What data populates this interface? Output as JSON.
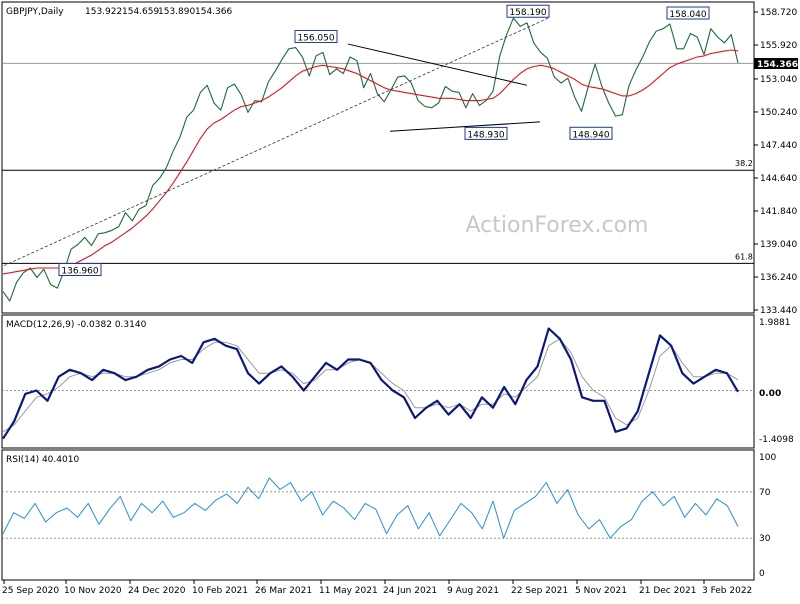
{
  "chart_data": [
    {
      "type": "line",
      "panel": "price",
      "title": "GBPJPY,Daily",
      "ohlc": [
        "153.922",
        "154.659",
        "153.890",
        "154.366"
      ],
      "current_price": "154.366",
      "watermark": "ActionForex.com",
      "ylim": [
        133.44,
        158.72
      ],
      "y_ticks": [
        "158.720",
        "155.920",
        "153.040",
        "150.240",
        "147.440",
        "144.640",
        "141.840",
        "139.040",
        "136.240",
        "133.440"
      ],
      "x_ticks": [
        "25 Sep 2020",
        "10 Nov 2020",
        "24 Dec 2020",
        "10 Feb 2021",
        "26 Mar 2021",
        "11 May 2021",
        "24 Jun 2021",
        "9 Aug 2021",
        "22 Sep 2021",
        "5 Nov 2021",
        "21 Dec 2021",
        "3 Feb 2022"
      ],
      "fib_levels": [
        {
          "label": "38.2",
          "value": 145.3
        },
        {
          "label": "61.8",
          "value": 137.4
        }
      ],
      "annotations": [
        {
          "label": "158.190",
          "value": 158.19
        },
        {
          "label": "158.040",
          "value": 158.04
        },
        {
          "label": "156.050",
          "value": 156.05
        },
        {
          "label": "148.930",
          "value": 148.93
        },
        {
          "label": "148.940",
          "value": 148.94
        },
        {
          "label": "136.960",
          "value": 136.96
        }
      ],
      "series": [
        {
          "name": "price",
          "values": [
            135.0,
            134.2,
            135.8,
            136.6,
            137.0,
            136.2,
            136.9,
            135.6,
            135.3,
            136.8,
            138.6,
            139.0,
            139.6,
            138.9,
            139.9,
            140.0,
            140.2,
            140.5,
            141.7,
            141.0,
            142.0,
            142.3,
            144.0,
            144.6,
            145.5,
            146.9,
            148.1,
            149.8,
            150.4,
            151.9,
            152.5,
            151.0,
            150.4,
            152.3,
            152.6,
            151.7,
            150.2,
            151.2,
            151.1,
            152.8,
            153.7,
            154.7,
            155.6,
            155.7,
            154.9,
            153.3,
            155.0,
            155.3,
            153.4,
            153.9,
            153.5,
            154.9,
            154.6,
            152.3,
            153.5,
            151.8,
            151.1,
            152.1,
            153.2,
            153.3,
            152.7,
            151.2,
            150.7,
            150.6,
            151.0,
            152.4,
            152.0,
            151.9,
            150.6,
            151.8,
            150.8,
            151.2,
            152.0,
            155.0,
            156.8,
            158.2,
            157.5,
            157.8,
            156.1,
            155.3,
            154.8,
            153.2,
            152.7,
            153.1,
            151.5,
            150.3,
            152.4,
            154.3,
            152.4,
            151.0,
            149.9,
            150.0,
            152.5,
            153.8,
            154.9,
            156.2,
            157.1,
            157.3,
            157.7,
            155.6,
            155.6,
            156.9,
            156.6,
            155.1,
            157.3,
            156.6,
            156.1,
            156.8,
            154.4
          ]
        },
        {
          "name": "moving average",
          "values": [
            136.5,
            136.6,
            136.7,
            136.8,
            136.9,
            137.0,
            137.0,
            137.0,
            137.0,
            137.0,
            137.2,
            137.5,
            137.8,
            138.1,
            138.5,
            138.9,
            139.2,
            139.6,
            140.0,
            140.4,
            140.9,
            141.4,
            142.0,
            142.7,
            143.4,
            144.2,
            145.1,
            146.0,
            147.0,
            148.0,
            148.8,
            149.3,
            149.6,
            150.0,
            150.4,
            150.7,
            150.8,
            151.0,
            151.2,
            151.5,
            151.9,
            152.3,
            152.8,
            153.3,
            153.7,
            153.9,
            154.1,
            154.2,
            154.1,
            154.0,
            153.9,
            153.7,
            153.5,
            153.2,
            152.9,
            152.6,
            152.3,
            152.1,
            152.0,
            151.9,
            151.8,
            151.7,
            151.6,
            151.5,
            151.4,
            151.4,
            151.4,
            151.3,
            151.2,
            151.2,
            151.2,
            151.3,
            151.4,
            151.8,
            152.4,
            153.0,
            153.5,
            153.9,
            154.1,
            154.2,
            154.1,
            153.9,
            153.6,
            153.3,
            153.0,
            152.6,
            152.4,
            152.3,
            152.2,
            152.0,
            151.8,
            151.6,
            151.6,
            151.8,
            152.1,
            152.5,
            153.0,
            153.5,
            154.0,
            154.3,
            154.5,
            154.7,
            154.9,
            155.0,
            155.2,
            155.3,
            155.4,
            155.5,
            155.4
          ]
        }
      ]
    },
    {
      "type": "line",
      "panel": "macd",
      "title": "MACD(12,26,9) -0.0382 0.3140",
      "ylim": [
        -1.4098,
        1.9881
      ],
      "y_ticks": [
        "1.9881",
        "0.00",
        "-1.4098"
      ],
      "series": [
        {
          "name": "MACD",
          "values": [
            -1.4,
            -0.9,
            -0.1,
            0.0,
            -0.3,
            0.4,
            0.6,
            0.5,
            0.3,
            0.6,
            0.5,
            0.3,
            0.4,
            0.6,
            0.7,
            0.9,
            1.0,
            0.8,
            1.4,
            1.5,
            1.3,
            1.2,
            0.5,
            0.2,
            0.5,
            0.7,
            0.4,
            0.0,
            0.4,
            0.8,
            0.6,
            0.9,
            0.9,
            0.8,
            0.3,
            0.0,
            -0.2,
            -0.8,
            -0.5,
            -0.3,
            -0.7,
            -0.4,
            -0.8,
            -0.2,
            -0.5,
            0.1,
            -0.4,
            0.3,
            0.7,
            1.8,
            1.5,
            0.9,
            -0.2,
            -0.3,
            -0.3,
            -1.2,
            -1.1,
            -0.6,
            0.5,
            1.6,
            1.3,
            0.5,
            0.2,
            0.4,
            0.6,
            0.5,
            -0.04
          ]
        },
        {
          "name": "Signal",
          "values": [
            -1.2,
            -1.0,
            -0.6,
            -0.2,
            -0.1,
            0.1,
            0.4,
            0.5,
            0.4,
            0.5,
            0.5,
            0.4,
            0.4,
            0.5,
            0.6,
            0.8,
            0.9,
            0.9,
            1.2,
            1.4,
            1.4,
            1.3,
            0.9,
            0.5,
            0.5,
            0.6,
            0.5,
            0.2,
            0.3,
            0.6,
            0.6,
            0.8,
            0.9,
            0.8,
            0.5,
            0.2,
            0.0,
            -0.5,
            -0.5,
            -0.4,
            -0.5,
            -0.4,
            -0.6,
            -0.4,
            -0.4,
            -0.1,
            -0.2,
            0.1,
            0.4,
            1.3,
            1.5,
            1.1,
            0.4,
            0.0,
            -0.2,
            -0.8,
            -1.0,
            -0.8,
            0.0,
            1.0,
            1.3,
            0.8,
            0.4,
            0.4,
            0.5,
            0.5,
            0.31
          ]
        }
      ]
    },
    {
      "type": "line",
      "panel": "rsi",
      "title": "RSI(14) 40.4010",
      "ylim": [
        0,
        100
      ],
      "y_ticks": [
        "100",
        "70",
        "30",
        "0"
      ],
      "guide_levels": [
        70,
        30
      ],
      "series": [
        {
          "name": "RSI",
          "values": [
            34,
            52,
            47,
            60,
            44,
            52,
            56,
            48,
            60,
            42,
            55,
            66,
            45,
            60,
            52,
            62,
            48,
            52,
            60,
            54,
            63,
            68,
            60,
            74,
            64,
            82,
            72,
            78,
            62,
            70,
            50,
            62,
            56,
            46,
            60,
            55,
            34,
            50,
            58,
            38,
            52,
            32,
            46,
            60,
            52,
            38,
            62,
            30,
            54,
            60,
            66,
            78,
            60,
            72,
            50,
            38,
            46,
            30,
            40,
            46,
            62,
            70,
            58,
            66,
            48,
            60,
            50,
            64,
            58,
            40
          ]
        }
      ]
    }
  ]
}
